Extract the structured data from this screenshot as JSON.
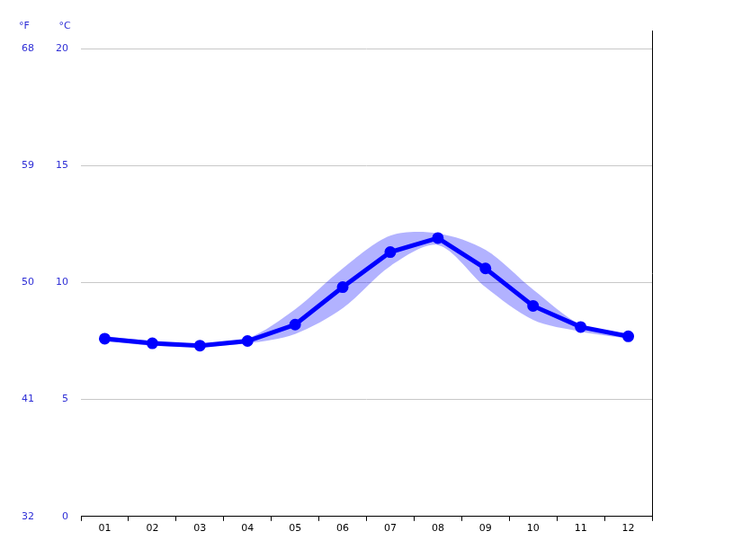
{
  "chart_data": {
    "type": "line",
    "ylabel": "°C",
    "y2label": "°F",
    "categories": [
      "01",
      "02",
      "03",
      "04",
      "05",
      "06",
      "07",
      "08",
      "09",
      "10",
      "11",
      "12"
    ],
    "series": [
      {
        "color": "#0000ff",
        "marker": "circle",
        "values": [
          7.6,
          7.4,
          7.3,
          7.5,
          8.2,
          9.8,
          11.3,
          11.9,
          10.6,
          9.0,
          8.1,
          7.7
        ],
        "low": [
          7.5,
          7.3,
          7.25,
          7.4,
          7.8,
          8.9,
          10.7,
          11.6,
          9.8,
          8.4,
          7.9,
          7.6
        ],
        "high": [
          7.7,
          7.5,
          7.35,
          7.6,
          8.85,
          10.6,
          12.0,
          12.1,
          11.4,
          9.7,
          8.2,
          7.8
        ]
      }
    ],
    "ylim": [
      0,
      20
    ],
    "yticks": [
      0,
      5,
      10,
      15,
      20
    ],
    "y2lim": [
      32,
      68
    ],
    "y2ticks": [
      32,
      41,
      50,
      59,
      68
    ],
    "grid": true
  }
}
